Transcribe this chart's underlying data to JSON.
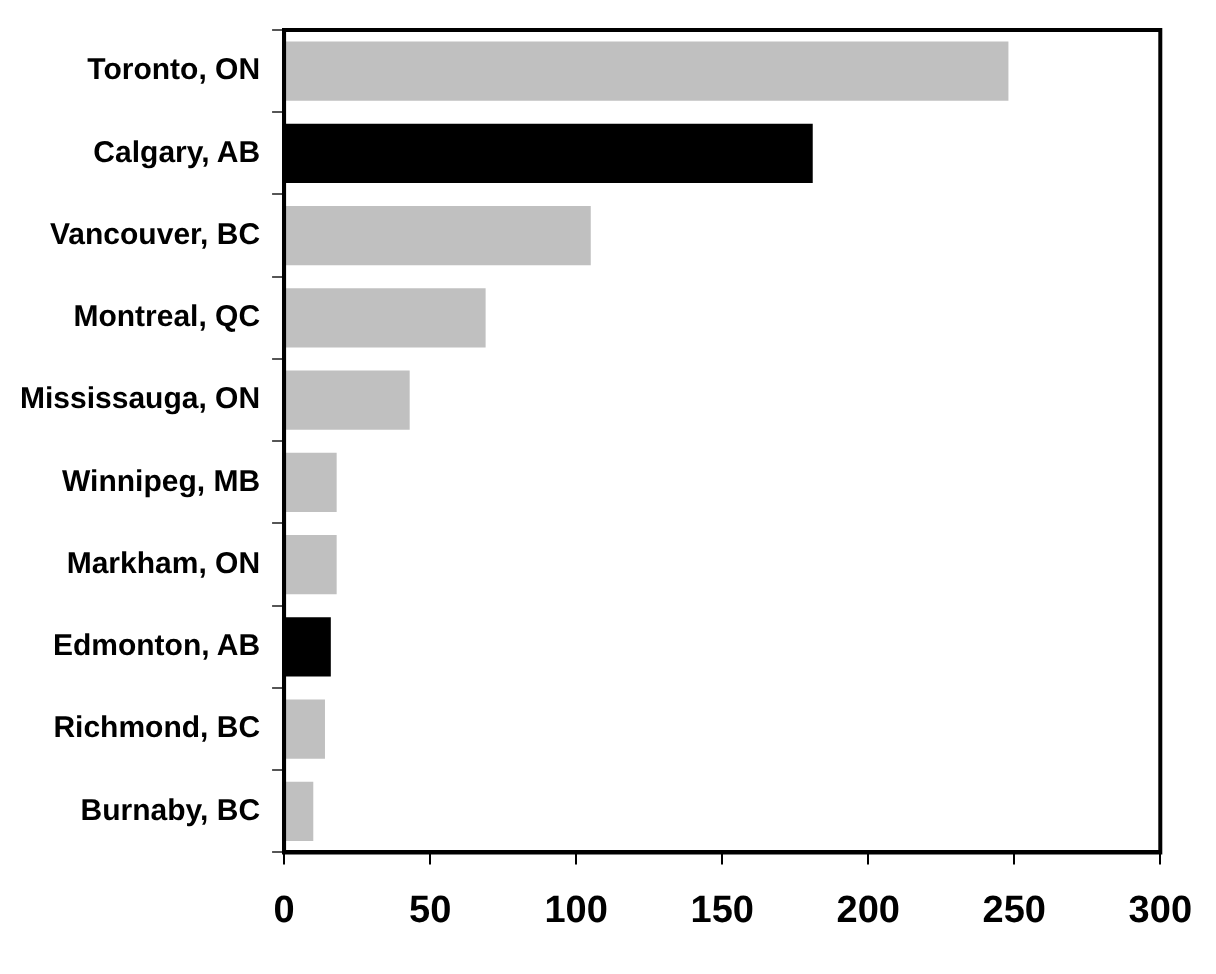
{
  "chart_data": {
    "type": "bar",
    "orientation": "horizontal",
    "categories": [
      "Toronto, ON",
      "Calgary, AB",
      "Vancouver, BC",
      "Montreal, QC",
      "Mississauga, ON",
      "Winnipeg, MB",
      "Markham, ON",
      "Edmonton, AB",
      "Richmond, BC",
      "Burnaby, BC"
    ],
    "values": [
      248,
      181,
      105,
      69,
      43,
      18,
      18,
      16,
      14,
      10
    ],
    "colors": [
      "#c0c0c0",
      "#000000",
      "#c0c0c0",
      "#c0c0c0",
      "#c0c0c0",
      "#c0c0c0",
      "#c0c0c0",
      "#000000",
      "#c0c0c0",
      "#c0c0c0"
    ],
    "xlim": [
      0,
      300
    ],
    "xticks": [
      0,
      50,
      100,
      150,
      200,
      250,
      300
    ],
    "grid": false,
    "legend": false
  }
}
